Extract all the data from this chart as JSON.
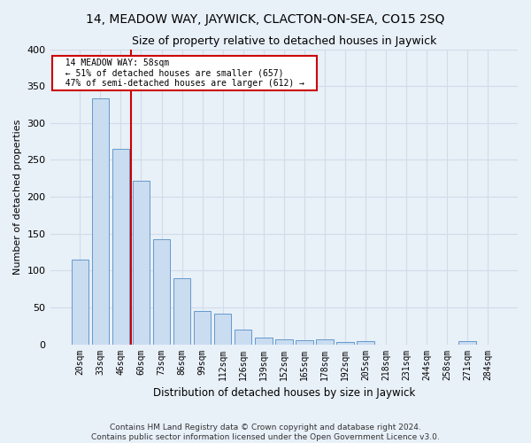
{
  "title1": "14, MEADOW WAY, JAYWICK, CLACTON-ON-SEA, CO15 2SQ",
  "title2": "Size of property relative to detached houses in Jaywick",
  "xlabel": "Distribution of detached houses by size in Jaywick",
  "ylabel": "Number of detached properties",
  "categories": [
    "20sqm",
    "33sqm",
    "46sqm",
    "60sqm",
    "73sqm",
    "86sqm",
    "99sqm",
    "112sqm",
    "126sqm",
    "139sqm",
    "152sqm",
    "165sqm",
    "178sqm",
    "192sqm",
    "205sqm",
    "218sqm",
    "231sqm",
    "244sqm",
    "258sqm",
    "271sqm",
    "284sqm"
  ],
  "values": [
    115,
    333,
    265,
    222,
    143,
    90,
    45,
    42,
    20,
    9,
    7,
    5,
    7,
    3,
    4,
    0,
    0,
    0,
    0,
    4,
    0
  ],
  "bar_color": "#c9dcf0",
  "bar_edge_color": "#6699cc",
  "grid_color": "#d0dde8",
  "bg_color": "#e8f0f8",
  "marker_index": 3,
  "annotation_title": "14 MEADOW WAY: 58sqm",
  "annotation_line1": "← 51% of detached houses are smaller (657)",
  "annotation_line2": "47% of semi-detached houses are larger (612) →",
  "annotation_box_color": "#ffffff",
  "annotation_box_edge": "#cc0000",
  "vline_color": "#cc0000",
  "footer1": "Contains HM Land Registry data © Crown copyright and database right 2024.",
  "footer2": "Contains public sector information licensed under the Open Government Licence v3.0.",
  "ylim": [
    0,
    400
  ],
  "yticks": [
    0,
    50,
    100,
    150,
    200,
    250,
    300,
    350,
    400
  ]
}
